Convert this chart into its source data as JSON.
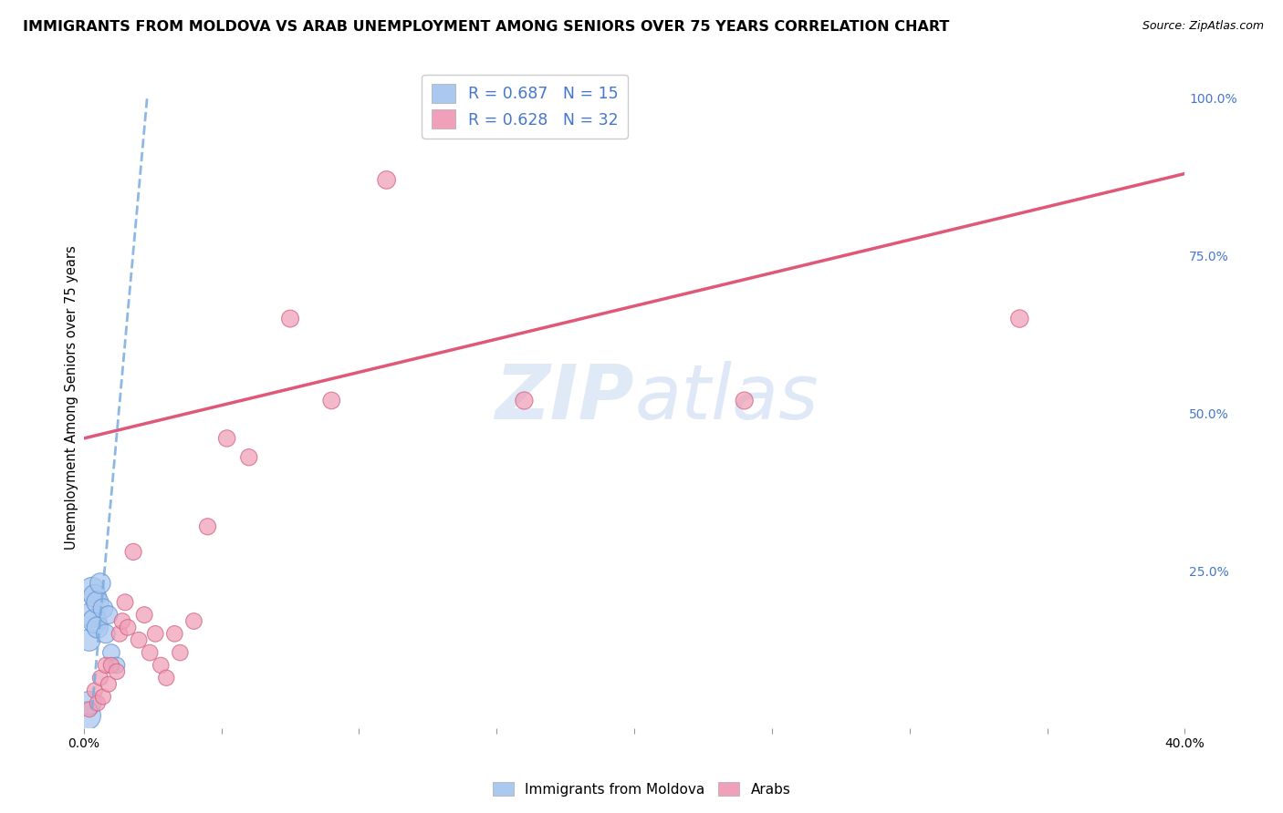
{
  "title": "IMMIGRANTS FROM MOLDOVA VS ARAB UNEMPLOYMENT AMONG SENIORS OVER 75 YEARS CORRELATION CHART",
  "source": "Source: ZipAtlas.com",
  "ylabel": "Unemployment Among Seniors over 75 years",
  "xlim": [
    0.0,
    0.4
  ],
  "ylim": [
    0.0,
    1.05
  ],
  "x_ticks": [
    0.0,
    0.05,
    0.1,
    0.15,
    0.2,
    0.25,
    0.3,
    0.35,
    0.4
  ],
  "y_ticks_right": [
    0.25,
    0.5,
    0.75,
    1.0
  ],
  "y_tick_labels_right": [
    "25.0%",
    "50.0%",
    "75.0%",
    "100.0%"
  ],
  "blue_scatter_x": [
    0.001,
    0.002,
    0.002,
    0.003,
    0.003,
    0.004,
    0.004,
    0.005,
    0.005,
    0.006,
    0.007,
    0.008,
    0.009,
    0.01,
    0.012
  ],
  "blue_scatter_y": [
    0.02,
    0.04,
    0.14,
    0.18,
    0.22,
    0.17,
    0.21,
    0.2,
    0.16,
    0.23,
    0.19,
    0.15,
    0.18,
    0.12,
    0.1
  ],
  "blue_scatter_sizes": [
    500,
    350,
    300,
    400,
    380,
    360,
    320,
    300,
    280,
    260,
    240,
    220,
    200,
    180,
    160
  ],
  "pink_scatter_x": [
    0.002,
    0.004,
    0.005,
    0.006,
    0.007,
    0.008,
    0.009,
    0.01,
    0.012,
    0.013,
    0.014,
    0.015,
    0.016,
    0.018,
    0.02,
    0.022,
    0.024,
    0.026,
    0.028,
    0.03,
    0.033,
    0.035,
    0.04,
    0.045,
    0.052,
    0.06,
    0.075,
    0.09,
    0.11,
    0.16,
    0.24,
    0.34
  ],
  "pink_scatter_y": [
    0.03,
    0.06,
    0.04,
    0.08,
    0.05,
    0.1,
    0.07,
    0.1,
    0.09,
    0.15,
    0.17,
    0.2,
    0.16,
    0.28,
    0.14,
    0.18,
    0.12,
    0.15,
    0.1,
    0.08,
    0.15,
    0.12,
    0.17,
    0.32,
    0.46,
    0.43,
    0.65,
    0.52,
    0.87,
    0.52,
    0.52,
    0.65
  ],
  "pink_scatter_sizes": [
    150,
    150,
    150,
    150,
    150,
    155,
    150,
    155,
    155,
    160,
    160,
    165,
    160,
    170,
    160,
    165,
    160,
    162,
    158,
    155,
    160,
    158,
    162,
    170,
    175,
    172,
    185,
    180,
    200,
    190,
    188,
    195
  ],
  "blue_line_x0": 0.003,
  "blue_line_x1": 0.023,
  "blue_line_y0": 0.03,
  "blue_line_y1": 1.0,
  "pink_line_x0": 0.0,
  "pink_line_x1": 0.4,
  "pink_line_y0": 0.46,
  "pink_line_y1": 0.88,
  "watermark_top": "ZIP",
  "watermark_bot": "atlas",
  "watermark_color": "#c8d8f0",
  "background_color": "#ffffff",
  "grid_color": "#d8d8d8",
  "blue_color": "#aac8f0",
  "blue_edge_color": "#6090d0",
  "pink_color": "#f0a0b8",
  "pink_edge_color": "#d06080",
  "blue_line_color": "#7aace0",
  "pink_line_color": "#e05878",
  "right_axis_color": "#4477cc",
  "title_fontsize": 11.5,
  "axis_label_fontsize": 10.5,
  "tick_fontsize": 10,
  "legend_r_color": "#4477cc",
  "legend_n_color": "#cc2222"
}
